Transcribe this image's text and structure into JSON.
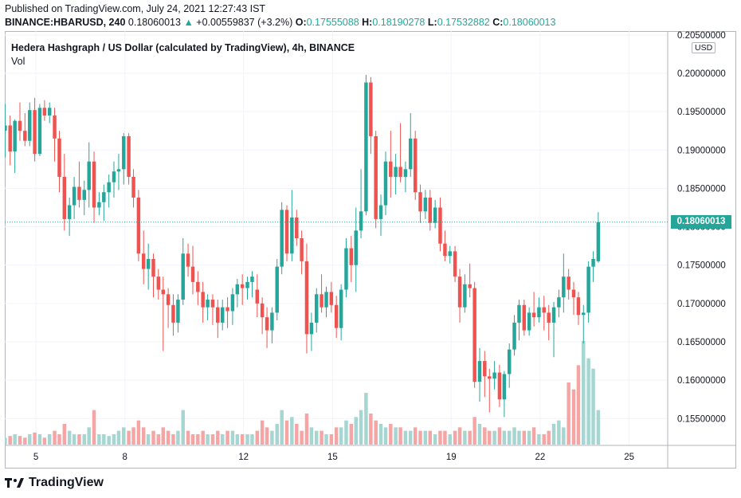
{
  "header": {
    "published": "Published on TradingView.com, July 24, 2021 12:27:43 IST",
    "symbol": "BINANCE:HBARUSD, 240",
    "last": "0.18060013",
    "change_icon": "up-triangle-icon",
    "change": "+0.00559837 (+3.2%)",
    "o_label": "O:",
    "o": "0.17555088",
    "h_label": "H:",
    "h": "0.18190278",
    "l_label": "L:",
    "l": "0.17532882",
    "c_label": "C:",
    "c": "0.18060013"
  },
  "legend": {
    "title": "Hedera Hashgraph / US Dollar (calculated by TradingView), 4h, BINANCE",
    "vol": "Vol"
  },
  "scale": {
    "currency": "USD",
    "last_price_badge": "0.18060013"
  },
  "footer": {
    "brand": "TradingView"
  },
  "colors": {
    "up": "#26a69a",
    "down": "#ef5350",
    "vol_up": "#a5d6d2",
    "vol_down": "#f5a5a4",
    "grid": "#f0f3fa"
  },
  "chart_data": {
    "type": "candlestick",
    "title": "Hedera Hashgraph / US Dollar (calculated by TradingView), 4h, BINANCE",
    "interval": "4h",
    "y_ticks": [
      "0.15500000",
      "0.16000000",
      "0.16500000",
      "0.17000000",
      "0.17500000",
      "0.18000000",
      "0.18500000",
      "0.19000000",
      "0.19500000",
      "0.20000000",
      "0.20500000"
    ],
    "x_ticks": [
      {
        "label": "5",
        "day": 5
      },
      {
        "label": "8",
        "day": 8
      },
      {
        "label": "12",
        "day": 12
      },
      {
        "label": "15",
        "day": 15
      },
      {
        "label": "19",
        "day": 19
      },
      {
        "label": "22",
        "day": 22
      },
      {
        "label": "25",
        "day": 25
      }
    ],
    "ylim": [
      0.1515,
      0.2055
    ],
    "xlim": [
      3.95,
      26.3
    ],
    "last_price": 0.18060013,
    "candles": [
      {
        "t": 3.96,
        "o": 0.1925,
        "h": 0.196,
        "l": 0.189,
        "c": 0.1932,
        "v": 0.2
      },
      {
        "t": 4.13,
        "o": 0.1932,
        "h": 0.1945,
        "l": 0.188,
        "c": 0.1898,
        "v": 0.25
      },
      {
        "t": 4.29,
        "o": 0.1898,
        "h": 0.194,
        "l": 0.187,
        "c": 0.1938,
        "v": 0.3
      },
      {
        "t": 4.46,
        "o": 0.1938,
        "h": 0.1962,
        "l": 0.1912,
        "c": 0.1925,
        "v": 0.25
      },
      {
        "t": 4.63,
        "o": 0.1925,
        "h": 0.1948,
        "l": 0.1905,
        "c": 0.1912,
        "v": 0.2
      },
      {
        "t": 4.79,
        "o": 0.1912,
        "h": 0.1962,
        "l": 0.1905,
        "c": 0.1952,
        "v": 0.3
      },
      {
        "t": 4.96,
        "o": 0.1952,
        "h": 0.1968,
        "l": 0.1885,
        "c": 0.1895,
        "v": 0.35
      },
      {
        "t": 5.13,
        "o": 0.1895,
        "h": 0.196,
        "l": 0.1892,
        "c": 0.1955,
        "v": 0.3
      },
      {
        "t": 5.29,
        "o": 0.1955,
        "h": 0.1965,
        "l": 0.1938,
        "c": 0.1945,
        "v": 0.2
      },
      {
        "t": 5.46,
        "o": 0.1945,
        "h": 0.1962,
        "l": 0.1935,
        "c": 0.1955,
        "v": 0.3
      },
      {
        "t": 5.63,
        "o": 0.1945,
        "h": 0.1955,
        "l": 0.1885,
        "c": 0.1915,
        "v": 0.4
      },
      {
        "t": 5.79,
        "o": 0.1915,
        "h": 0.1925,
        "l": 0.1845,
        "c": 0.1865,
        "v": 0.3
      },
      {
        "t": 5.96,
        "o": 0.1865,
        "h": 0.1895,
        "l": 0.1795,
        "c": 0.181,
        "v": 0.6
      },
      {
        "t": 6.13,
        "o": 0.181,
        "h": 0.1838,
        "l": 0.1788,
        "c": 0.1828,
        "v": 0.4
      },
      {
        "t": 6.29,
        "o": 0.1828,
        "h": 0.1865,
        "l": 0.181,
        "c": 0.1852,
        "v": 0.3
      },
      {
        "t": 6.46,
        "o": 0.1852,
        "h": 0.1885,
        "l": 0.1825,
        "c": 0.1835,
        "v": 0.3
      },
      {
        "t": 6.63,
        "o": 0.1835,
        "h": 0.186,
        "l": 0.1815,
        "c": 0.1848,
        "v": 0.3
      },
      {
        "t": 6.79,
        "o": 0.1848,
        "h": 0.191,
        "l": 0.1825,
        "c": 0.1885,
        "v": 0.5
      },
      {
        "t": 6.96,
        "o": 0.1885,
        "h": 0.1898,
        "l": 0.1805,
        "c": 0.1825,
        "v": 1.0
      },
      {
        "t": 7.13,
        "o": 0.1825,
        "h": 0.1845,
        "l": 0.1815,
        "c": 0.1832,
        "v": 0.3
      },
      {
        "t": 7.29,
        "o": 0.1832,
        "h": 0.1855,
        "l": 0.1808,
        "c": 0.1845,
        "v": 0.3
      },
      {
        "t": 7.46,
        "o": 0.1845,
        "h": 0.1868,
        "l": 0.1825,
        "c": 0.1858,
        "v": 0.25
      },
      {
        "t": 7.63,
        "o": 0.1858,
        "h": 0.1885,
        "l": 0.1838,
        "c": 0.1872,
        "v": 0.3
      },
      {
        "t": 7.79,
        "o": 0.1872,
        "h": 0.1895,
        "l": 0.1848,
        "c": 0.1875,
        "v": 0.4
      },
      {
        "t": 7.96,
        "o": 0.1875,
        "h": 0.1922,
        "l": 0.1855,
        "c": 0.1918,
        "v": 0.5
      },
      {
        "t": 8.13,
        "o": 0.1918,
        "h": 0.1922,
        "l": 0.1855,
        "c": 0.1865,
        "v": 0.4
      },
      {
        "t": 8.29,
        "o": 0.1865,
        "h": 0.1875,
        "l": 0.1825,
        "c": 0.1838,
        "v": 0.5
      },
      {
        "t": 8.46,
        "o": 0.1838,
        "h": 0.1848,
        "l": 0.1755,
        "c": 0.1765,
        "v": 0.7
      },
      {
        "t": 8.63,
        "o": 0.1765,
        "h": 0.1795,
        "l": 0.1725,
        "c": 0.1745,
        "v": 0.5
      },
      {
        "t": 8.79,
        "o": 0.1745,
        "h": 0.1778,
        "l": 0.1718,
        "c": 0.1758,
        "v": 0.3
      },
      {
        "t": 8.96,
        "o": 0.1758,
        "h": 0.1765,
        "l": 0.1708,
        "c": 0.1735,
        "v": 0.4
      },
      {
        "t": 9.13,
        "o": 0.1735,
        "h": 0.1745,
        "l": 0.1705,
        "c": 0.1718,
        "v": 0.3
      },
      {
        "t": 9.29,
        "o": 0.1718,
        "h": 0.1735,
        "l": 0.1638,
        "c": 0.1712,
        "v": 0.5
      },
      {
        "t": 9.46,
        "o": 0.1712,
        "h": 0.172,
        "l": 0.1668,
        "c": 0.1698,
        "v": 0.4
      },
      {
        "t": 9.63,
        "o": 0.1698,
        "h": 0.1712,
        "l": 0.1658,
        "c": 0.1675,
        "v": 0.3
      },
      {
        "t": 9.79,
        "o": 0.1675,
        "h": 0.1712,
        "l": 0.1662,
        "c": 0.1705,
        "v": 0.4
      },
      {
        "t": 9.96,
        "o": 0.1705,
        "h": 0.1785,
        "l": 0.1698,
        "c": 0.1765,
        "v": 1.0
      },
      {
        "t": 10.13,
        "o": 0.1765,
        "h": 0.1778,
        "l": 0.1735,
        "c": 0.1748,
        "v": 0.4
      },
      {
        "t": 10.29,
        "o": 0.1748,
        "h": 0.1775,
        "l": 0.1712,
        "c": 0.1728,
        "v": 0.3
      },
      {
        "t": 10.46,
        "o": 0.1728,
        "h": 0.1742,
        "l": 0.1698,
        "c": 0.1715,
        "v": 0.3
      },
      {
        "t": 10.63,
        "o": 0.1715,
        "h": 0.1728,
        "l": 0.1675,
        "c": 0.1695,
        "v": 0.4
      },
      {
        "t": 10.79,
        "o": 0.1695,
        "h": 0.1712,
        "l": 0.1678,
        "c": 0.1705,
        "v": 0.3
      },
      {
        "t": 10.96,
        "o": 0.1705,
        "h": 0.1712,
        "l": 0.1672,
        "c": 0.1695,
        "v": 0.3
      },
      {
        "t": 11.13,
        "o": 0.1695,
        "h": 0.1705,
        "l": 0.1655,
        "c": 0.1675,
        "v": 0.4
      },
      {
        "t": 11.29,
        "o": 0.1675,
        "h": 0.1705,
        "l": 0.1665,
        "c": 0.1695,
        "v": 0.3
      },
      {
        "t": 11.46,
        "o": 0.1695,
        "h": 0.1708,
        "l": 0.1668,
        "c": 0.169,
        "v": 0.4
      },
      {
        "t": 11.63,
        "o": 0.169,
        "h": 0.172,
        "l": 0.1672,
        "c": 0.1712,
        "v": 0.4
      },
      {
        "t": 11.79,
        "o": 0.1712,
        "h": 0.1732,
        "l": 0.1695,
        "c": 0.1725,
        "v": 0.3
      },
      {
        "t": 11.96,
        "o": 0.1725,
        "h": 0.1738,
        "l": 0.1698,
        "c": 0.172,
        "v": 0.3
      },
      {
        "t": 12.13,
        "o": 0.172,
        "h": 0.1735,
        "l": 0.1705,
        "c": 0.1728,
        "v": 0.3
      },
      {
        "t": 12.29,
        "o": 0.1728,
        "h": 0.1742,
        "l": 0.1708,
        "c": 0.1735,
        "v": 0.3
      },
      {
        "t": 12.46,
        "o": 0.1718,
        "h": 0.1738,
        "l": 0.1682,
        "c": 0.17,
        "v": 0.4
      },
      {
        "t": 12.63,
        "o": 0.17,
        "h": 0.1708,
        "l": 0.166,
        "c": 0.1682,
        "v": 0.7
      },
      {
        "t": 12.79,
        "o": 0.1682,
        "h": 0.1695,
        "l": 0.1642,
        "c": 0.1665,
        "v": 0.5
      },
      {
        "t": 12.96,
        "o": 0.1665,
        "h": 0.1695,
        "l": 0.1648,
        "c": 0.1688,
        "v": 0.4
      },
      {
        "t": 13.13,
        "o": 0.1688,
        "h": 0.1758,
        "l": 0.1678,
        "c": 0.1748,
        "v": 0.6
      },
      {
        "t": 13.29,
        "o": 0.1748,
        "h": 0.1832,
        "l": 0.1738,
        "c": 0.1822,
        "v": 1.0
      },
      {
        "t": 13.46,
        "o": 0.1822,
        "h": 0.1828,
        "l": 0.1755,
        "c": 0.1765,
        "v": 0.7
      },
      {
        "t": 13.63,
        "o": 0.1765,
        "h": 0.1848,
        "l": 0.1755,
        "c": 0.1812,
        "v": 0.8
      },
      {
        "t": 13.79,
        "o": 0.1812,
        "h": 0.1822,
        "l": 0.1775,
        "c": 0.1785,
        "v": 0.6
      },
      {
        "t": 13.96,
        "o": 0.1785,
        "h": 0.1795,
        "l": 0.1738,
        "c": 0.1755,
        "v": 0.4
      },
      {
        "t": 14.13,
        "o": 0.1755,
        "h": 0.1778,
        "l": 0.1635,
        "c": 0.166,
        "v": 0.9
      },
      {
        "t": 14.29,
        "o": 0.166,
        "h": 0.1688,
        "l": 0.1638,
        "c": 0.1675,
        "v": 0.5
      },
      {
        "t": 14.46,
        "o": 0.1675,
        "h": 0.172,
        "l": 0.1662,
        "c": 0.1712,
        "v": 0.4
      },
      {
        "t": 14.63,
        "o": 0.1712,
        "h": 0.1738,
        "l": 0.1688,
        "c": 0.1695,
        "v": 0.4
      },
      {
        "t": 14.79,
        "o": 0.1695,
        "h": 0.1722,
        "l": 0.1682,
        "c": 0.1715,
        "v": 0.3
      },
      {
        "t": 14.96,
        "o": 0.1715,
        "h": 0.1728,
        "l": 0.1688,
        "c": 0.1698,
        "v": 0.3
      },
      {
        "t": 15.13,
        "o": 0.1698,
        "h": 0.171,
        "l": 0.1655,
        "c": 0.1668,
        "v": 0.5
      },
      {
        "t": 15.29,
        "o": 0.1668,
        "h": 0.1725,
        "l": 0.1652,
        "c": 0.1718,
        "v": 0.5
      },
      {
        "t": 15.46,
        "o": 0.1718,
        "h": 0.1785,
        "l": 0.1708,
        "c": 0.1772,
        "v": 0.7
      },
      {
        "t": 15.63,
        "o": 0.1772,
        "h": 0.1788,
        "l": 0.1728,
        "c": 0.175,
        "v": 0.6
      },
      {
        "t": 15.79,
        "o": 0.175,
        "h": 0.1825,
        "l": 0.1715,
        "c": 0.1795,
        "v": 0.8
      },
      {
        "t": 15.96,
        "o": 0.1795,
        "h": 0.1875,
        "l": 0.1785,
        "c": 0.182,
        "v": 1.0
      },
      {
        "t": 16.13,
        "o": 0.182,
        "h": 0.1998,
        "l": 0.1815,
        "c": 0.1988,
        "v": 1.5
      },
      {
        "t": 16.29,
        "o": 0.1988,
        "h": 0.1995,
        "l": 0.1895,
        "c": 0.1918,
        "v": 0.9
      },
      {
        "t": 16.46,
        "o": 0.1918,
        "h": 0.1925,
        "l": 0.1798,
        "c": 0.181,
        "v": 0.7
      },
      {
        "t": 16.63,
        "o": 0.181,
        "h": 0.1842,
        "l": 0.1788,
        "c": 0.1828,
        "v": 0.6
      },
      {
        "t": 16.79,
        "o": 0.1828,
        "h": 0.1898,
        "l": 0.1815,
        "c": 0.1885,
        "v": 0.5
      },
      {
        "t": 16.96,
        "o": 0.1885,
        "h": 0.1925,
        "l": 0.1838,
        "c": 0.1865,
        "v": 0.6
      },
      {
        "t": 17.13,
        "o": 0.1865,
        "h": 0.1895,
        "l": 0.1842,
        "c": 0.1878,
        "v": 0.5
      },
      {
        "t": 17.29,
        "o": 0.1878,
        "h": 0.1935,
        "l": 0.1858,
        "c": 0.1865,
        "v": 0.5
      },
      {
        "t": 17.46,
        "o": 0.1865,
        "h": 0.1885,
        "l": 0.1845,
        "c": 0.1875,
        "v": 0.4
      },
      {
        "t": 17.63,
        "o": 0.1875,
        "h": 0.1948,
        "l": 0.1865,
        "c": 0.1915,
        "v": 0.4
      },
      {
        "t": 17.79,
        "o": 0.1915,
        "h": 0.1925,
        "l": 0.1835,
        "c": 0.1845,
        "v": 0.5
      },
      {
        "t": 17.96,
        "o": 0.1845,
        "h": 0.1855,
        "l": 0.1805,
        "c": 0.182,
        "v": 0.4
      },
      {
        "t": 18.13,
        "o": 0.182,
        "h": 0.1848,
        "l": 0.181,
        "c": 0.1838,
        "v": 0.4
      },
      {
        "t": 18.29,
        "o": 0.1838,
        "h": 0.1848,
        "l": 0.1795,
        "c": 0.1805,
        "v": 0.4
      },
      {
        "t": 18.46,
        "o": 0.1805,
        "h": 0.1835,
        "l": 0.1798,
        "c": 0.1825,
        "v": 0.3
      },
      {
        "t": 18.63,
        "o": 0.1825,
        "h": 0.1838,
        "l": 0.1768,
        "c": 0.1778,
        "v": 0.4
      },
      {
        "t": 18.79,
        "o": 0.1778,
        "h": 0.1795,
        "l": 0.1755,
        "c": 0.1762,
        "v": 0.4
      },
      {
        "t": 18.96,
        "o": 0.1762,
        "h": 0.1775,
        "l": 0.1752,
        "c": 0.1768,
        "v": 0.3
      },
      {
        "t": 19.13,
        "o": 0.1768,
        "h": 0.1775,
        "l": 0.1728,
        "c": 0.1735,
        "v": 0.4
      },
      {
        "t": 19.29,
        "o": 0.1735,
        "h": 0.1745,
        "l": 0.1675,
        "c": 0.1695,
        "v": 0.5
      },
      {
        "t": 19.46,
        "o": 0.1695,
        "h": 0.1738,
        "l": 0.1688,
        "c": 0.1725,
        "v": 0.4
      },
      {
        "t": 19.63,
        "o": 0.1725,
        "h": 0.1752,
        "l": 0.1708,
        "c": 0.172,
        "v": 0.4
      },
      {
        "t": 19.79,
        "o": 0.172,
        "h": 0.1728,
        "l": 0.159,
        "c": 0.1598,
        "v": 0.8
      },
      {
        "t": 19.96,
        "o": 0.1598,
        "h": 0.1642,
        "l": 0.1572,
        "c": 0.1625,
        "v": 0.6
      },
      {
        "t": 20.13,
        "o": 0.1625,
        "h": 0.1638,
        "l": 0.1578,
        "c": 0.1605,
        "v": 0.5
      },
      {
        "t": 20.29,
        "o": 0.1605,
        "h": 0.1615,
        "l": 0.1558,
        "c": 0.1602,
        "v": 0.4
      },
      {
        "t": 20.46,
        "o": 0.1602,
        "h": 0.1625,
        "l": 0.1588,
        "c": 0.161,
        "v": 0.4
      },
      {
        "t": 20.63,
        "o": 0.161,
        "h": 0.162,
        "l": 0.1565,
        "c": 0.1575,
        "v": 0.5
      },
      {
        "t": 20.79,
        "o": 0.1575,
        "h": 0.1612,
        "l": 0.1552,
        "c": 0.1608,
        "v": 0.4
      },
      {
        "t": 20.96,
        "o": 0.1608,
        "h": 0.1648,
        "l": 0.159,
        "c": 0.164,
        "v": 0.4
      },
      {
        "t": 21.13,
        "o": 0.164,
        "h": 0.1685,
        "l": 0.1632,
        "c": 0.1675,
        "v": 0.5
      },
      {
        "t": 21.29,
        "o": 0.1675,
        "h": 0.1705,
        "l": 0.1652,
        "c": 0.1698,
        "v": 0.4
      },
      {
        "t": 21.46,
        "o": 0.1698,
        "h": 0.1705,
        "l": 0.1658,
        "c": 0.1665,
        "v": 0.4
      },
      {
        "t": 21.63,
        "o": 0.1665,
        "h": 0.1695,
        "l": 0.1658,
        "c": 0.1688,
        "v": 0.4
      },
      {
        "t": 21.79,
        "o": 0.1688,
        "h": 0.1715,
        "l": 0.167,
        "c": 0.1682,
        "v": 0.5
      },
      {
        "t": 21.96,
        "o": 0.1682,
        "h": 0.1708,
        "l": 0.1675,
        "c": 0.1695,
        "v": 0.3
      },
      {
        "t": 22.13,
        "o": 0.1695,
        "h": 0.171,
        "l": 0.1665,
        "c": 0.1688,
        "v": 0.3
      },
      {
        "t": 22.29,
        "o": 0.1688,
        "h": 0.1698,
        "l": 0.1652,
        "c": 0.1675,
        "v": 0.4
      },
      {
        "t": 22.46,
        "o": 0.1675,
        "h": 0.1702,
        "l": 0.163,
        "c": 0.1695,
        "v": 0.6
      },
      {
        "t": 22.63,
        "o": 0.1695,
        "h": 0.1718,
        "l": 0.1682,
        "c": 0.1708,
        "v": 0.7
      },
      {
        "t": 22.79,
        "o": 0.1708,
        "h": 0.1765,
        "l": 0.1688,
        "c": 0.1735,
        "v": 0.5
      },
      {
        "t": 22.96,
        "o": 0.1735,
        "h": 0.1745,
        "l": 0.1705,
        "c": 0.1718,
        "v": 1.8
      },
      {
        "t": 23.13,
        "o": 0.1718,
        "h": 0.1728,
        "l": 0.1685,
        "c": 0.1708,
        "v": 1.6
      },
      {
        "t": 23.29,
        "o": 0.1708,
        "h": 0.1715,
        "l": 0.1672,
        "c": 0.1685,
        "v": 2.3
      },
      {
        "t": 23.46,
        "o": 0.1685,
        "h": 0.1698,
        "l": 0.1648,
        "c": 0.1688,
        "v": 3.0
      },
      {
        "t": 23.63,
        "o": 0.1688,
        "h": 0.1755,
        "l": 0.1675,
        "c": 0.1748,
        "v": 2.5
      },
      {
        "t": 23.79,
        "o": 0.1748,
        "h": 0.1768,
        "l": 0.1728,
        "c": 0.1758,
        "v": 2.2
      },
      {
        "t": 23.96,
        "o": 0.1755,
        "h": 0.1819,
        "l": 0.1753,
        "c": 0.1806,
        "v": 1.0
      }
    ]
  }
}
